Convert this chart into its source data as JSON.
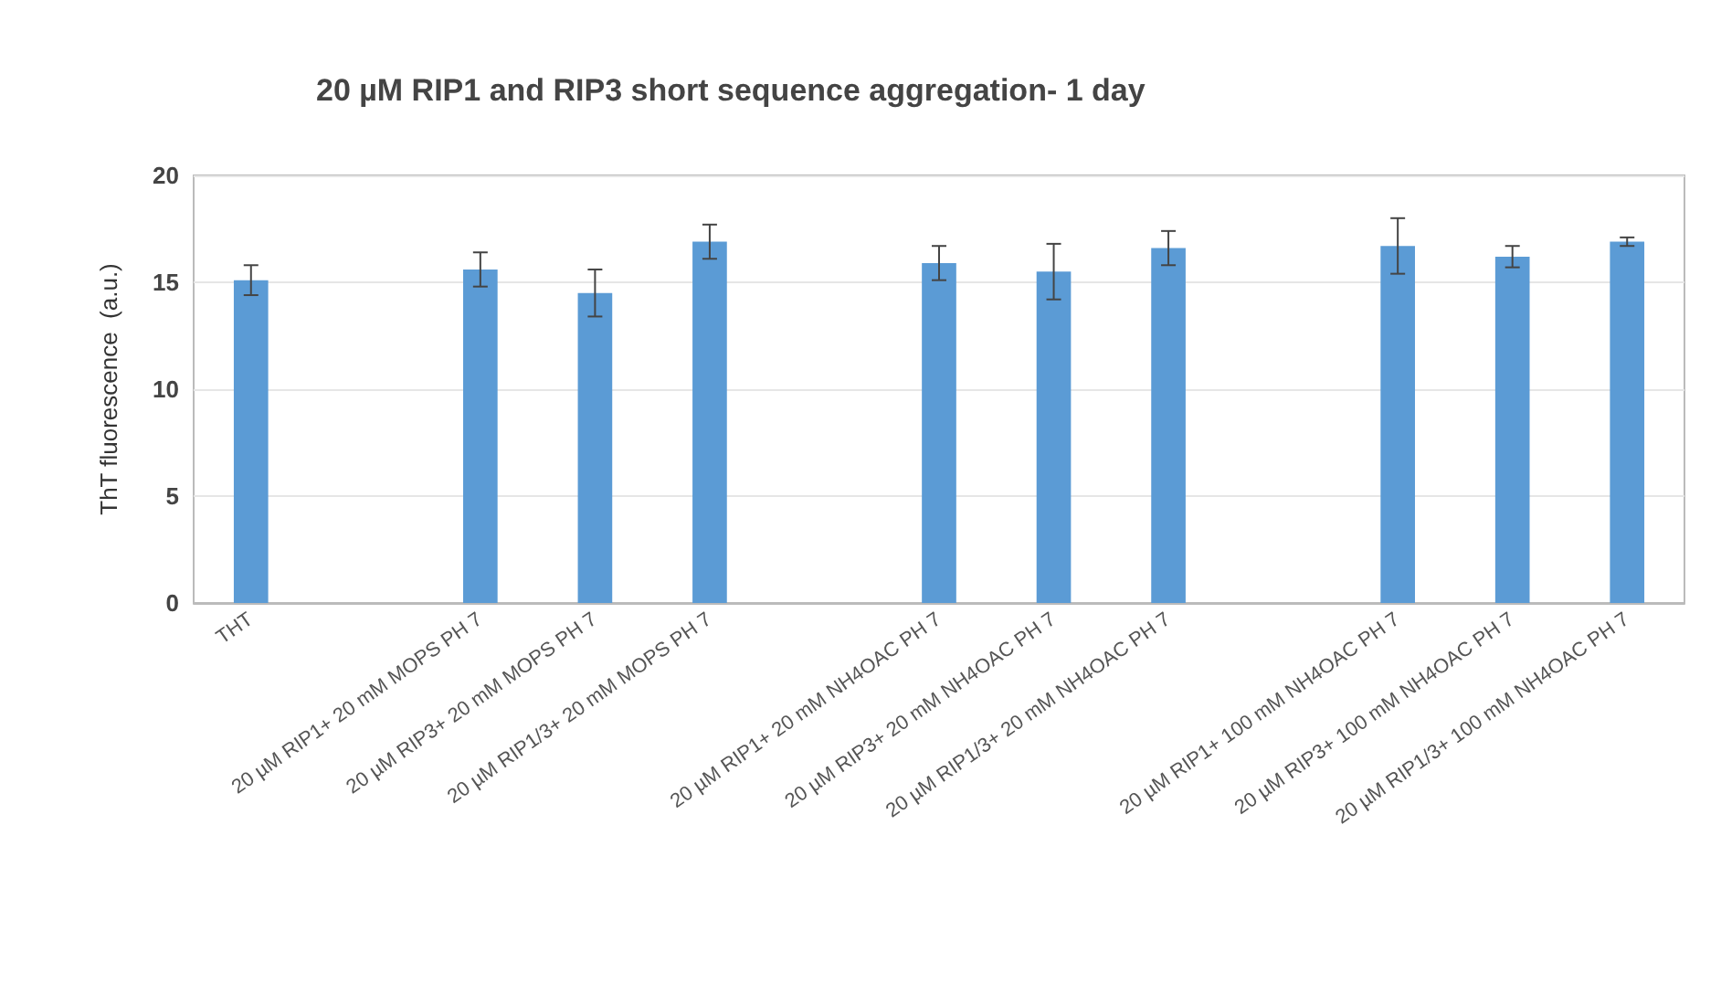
{
  "chart_data": {
    "type": "bar",
    "title": "20 µM RIP1 and RIP3 short sequence aggregation- 1 day",
    "ylabel": "ThT fluorescence  (a.u.)",
    "categories": [
      "THT",
      null,
      "20 µM RIP1+ 20 mM MOPS PH 7",
      "20 µM RIP3+ 20 mM MOPS PH 7",
      "20 µM RIP1/3+ 20 mM MOPS PH 7",
      null,
      "20 µM RIP1+ 20 mM NH4OAC PH 7",
      "20 µM RIP3+ 20 mM NH4OAC PH 7",
      "20 µM RIP1/3+ 20 mM NH4OAC PH 7",
      null,
      "20 µM RIP1+ 100 mM NH4OAC PH 7",
      "20 µM RIP3+ 100 mM NH4OAC PH 7",
      "20 µM RIP1/3+ 100 mM NH4OAC PH 7"
    ],
    "values": [
      15.1,
      null,
      15.6,
      14.5,
      16.9,
      null,
      15.9,
      15.5,
      16.6,
      null,
      16.7,
      16.2,
      16.9
    ],
    "errors": [
      0.7,
      null,
      0.8,
      1.1,
      0.8,
      null,
      0.8,
      1.3,
      0.8,
      null,
      1.3,
      0.5,
      0.2
    ],
    "color": "#5b9bd5",
    "ylim": [
      0,
      20
    ],
    "yticks": [
      0,
      5,
      10,
      15,
      20
    ],
    "grid": "y"
  }
}
